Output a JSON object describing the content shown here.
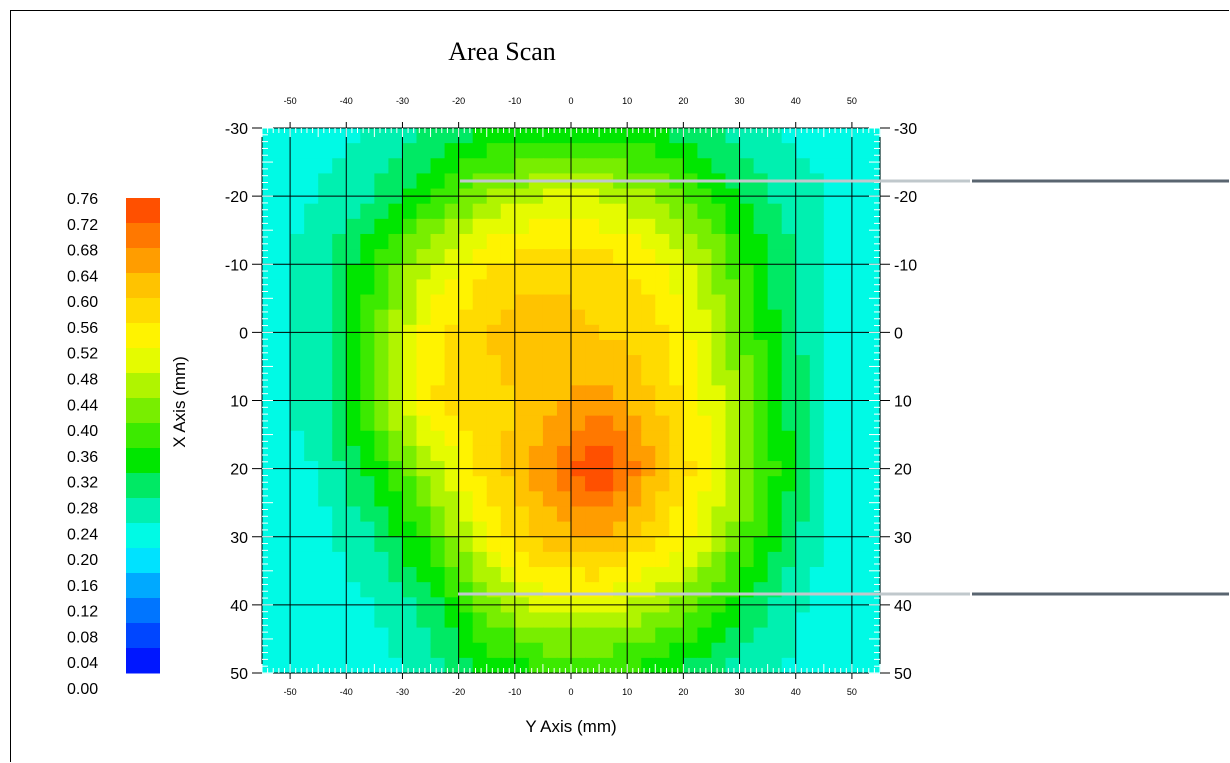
{
  "chart_data": {
    "type": "heatmap",
    "title": "Area Scan",
    "xlabel": "Y Axis (mm)",
    "ylabel": "X Axis (mm)",
    "x_range": [
      -55,
      55
    ],
    "y_range": [
      -30,
      50
    ],
    "x_ticks": [
      -50,
      -40,
      -30,
      -20,
      -10,
      0,
      10,
      20,
      30,
      40,
      50
    ],
    "x_tick_labels": [
      "-50",
      "-40",
      "-30",
      "-20",
      "-10",
      "0",
      "10",
      "20",
      "30",
      "40",
      "50"
    ],
    "y_ticks": [
      -30,
      -20,
      -10,
      0,
      10,
      20,
      30,
      40,
      50
    ],
    "y_tick_labels": [
      "-30",
      "-20",
      "-10",
      "0",
      "10",
      "20",
      "30",
      "40",
      "50"
    ],
    "grid": true,
    "colorbar": {
      "min": 0.0,
      "max": 0.76,
      "step": 0.04,
      "labels": [
        "0.76",
        "0.72",
        "0.68",
        "0.64",
        "0.60",
        "0.56",
        "0.52",
        "0.48",
        "0.44",
        "0.40",
        "0.36",
        "0.32",
        "0.28",
        "0.24",
        "0.20",
        "0.16",
        "0.12",
        "0.08",
        "0.04",
        "0.00"
      ]
    },
    "grid_x": [
      -55,
      -45,
      -35,
      -25,
      -15,
      -5,
      5,
      15,
      25,
      35,
      45,
      55
    ],
    "grid_y": [
      -30,
      -20,
      -10,
      0,
      10,
      20,
      30,
      40,
      50
    ],
    "values": [
      [
        0.22,
        0.22,
        0.24,
        0.28,
        0.32,
        0.34,
        0.34,
        0.32,
        0.28,
        0.24,
        0.22,
        0.22
      ],
      [
        0.22,
        0.24,
        0.28,
        0.36,
        0.44,
        0.48,
        0.48,
        0.44,
        0.36,
        0.28,
        0.24,
        0.22
      ],
      [
        0.22,
        0.26,
        0.36,
        0.48,
        0.56,
        0.58,
        0.58,
        0.54,
        0.44,
        0.32,
        0.24,
        0.22
      ],
      [
        0.22,
        0.26,
        0.4,
        0.54,
        0.6,
        0.64,
        0.6,
        0.58,
        0.48,
        0.34,
        0.24,
        0.22
      ],
      [
        0.22,
        0.26,
        0.42,
        0.56,
        0.58,
        0.62,
        0.66,
        0.6,
        0.5,
        0.36,
        0.24,
        0.22
      ],
      [
        0.22,
        0.24,
        0.34,
        0.46,
        0.58,
        0.66,
        0.76,
        0.64,
        0.52,
        0.38,
        0.24,
        0.22
      ],
      [
        0.22,
        0.22,
        0.28,
        0.38,
        0.52,
        0.62,
        0.64,
        0.58,
        0.48,
        0.34,
        0.24,
        0.22
      ],
      [
        0.22,
        0.22,
        0.24,
        0.3,
        0.42,
        0.5,
        0.5,
        0.46,
        0.38,
        0.28,
        0.22,
        0.22
      ],
      [
        0.22,
        0.22,
        0.22,
        0.26,
        0.32,
        0.36,
        0.36,
        0.34,
        0.28,
        0.24,
        0.22,
        0.22
      ]
    ]
  }
}
